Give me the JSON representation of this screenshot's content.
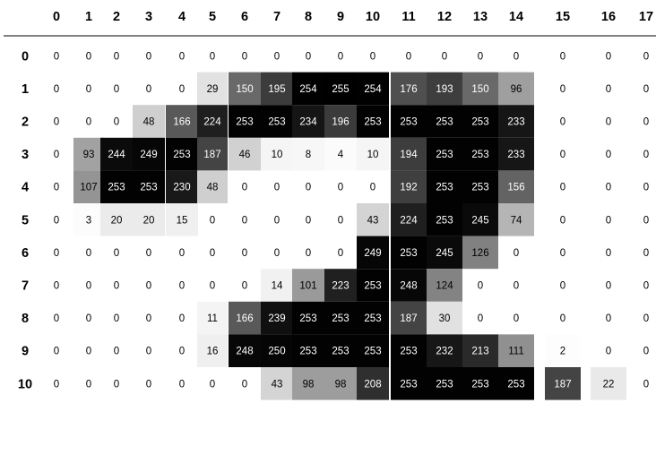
{
  "chart_data": {
    "type": "heatmap",
    "title": "",
    "xlabel": "",
    "ylabel": "",
    "columns": [
      "0",
      "1",
      "2",
      "3",
      "4",
      "5",
      "6",
      "7",
      "8",
      "9",
      "10",
      "11",
      "12",
      "13",
      "14",
      "15",
      "16",
      "17"
    ],
    "rows": [
      "0",
      "1",
      "2",
      "3",
      "4",
      "5",
      "6",
      "7",
      "8",
      "9",
      "10"
    ],
    "values": [
      [
        0,
        0,
        0,
        0,
        0,
        0,
        0,
        0,
        0,
        0,
        0,
        0,
        0,
        0,
        0,
        0,
        0,
        0
      ],
      [
        0,
        0,
        0,
        0,
        0,
        29,
        150,
        195,
        254,
        255,
        254,
        176,
        193,
        150,
        96,
        0,
        0,
        0
      ],
      [
        0,
        0,
        0,
        48,
        166,
        224,
        253,
        253,
        234,
        196,
        253,
        253,
        253,
        253,
        233,
        0,
        0,
        0
      ],
      [
        0,
        93,
        244,
        249,
        253,
        187,
        46,
        10,
        8,
        4,
        10,
        194,
        253,
        253,
        233,
        0,
        0,
        0
      ],
      [
        0,
        107,
        253,
        253,
        230,
        48,
        0,
        0,
        0,
        0,
        0,
        192,
        253,
        253,
        156,
        0,
        0,
        0
      ],
      [
        0,
        3,
        20,
        20,
        15,
        0,
        0,
        0,
        0,
        0,
        43,
        224,
        253,
        245,
        74,
        0,
        0,
        0
      ],
      [
        0,
        0,
        0,
        0,
        0,
        0,
        0,
        0,
        0,
        0,
        249,
        253,
        245,
        126,
        0,
        0,
        0,
        0
      ],
      [
        0,
        0,
        0,
        0,
        0,
        0,
        0,
        14,
        101,
        223,
        253,
        248,
        124,
        0,
        0,
        0,
        0,
        0
      ],
      [
        0,
        0,
        0,
        0,
        0,
        11,
        166,
        239,
        253,
        253,
        253,
        187,
        30,
        0,
        0,
        0,
        0,
        0
      ],
      [
        0,
        0,
        0,
        0,
        0,
        16,
        248,
        250,
        253,
        253,
        253,
        253,
        232,
        213,
        111,
        2,
        0,
        0
      ],
      [
        0,
        0,
        0,
        0,
        0,
        0,
        0,
        43,
        98,
        98,
        208,
        253,
        253,
        253,
        253,
        187,
        22,
        0
      ]
    ],
    "value_range": [
      0,
      255
    ],
    "colormap": "gray_r",
    "grid": false,
    "legend": "none"
  }
}
